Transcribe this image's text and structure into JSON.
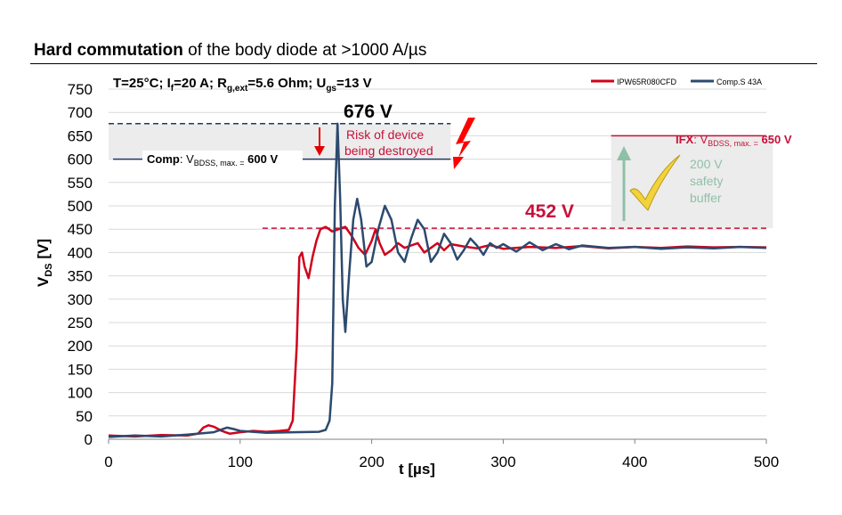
{
  "title": {
    "bold": "Hard commutation",
    "rest": "of the body diode at >1000 A/µs"
  },
  "conditions": {
    "a": "T=25°C; I",
    "a_sub": "f",
    "b": "=20 A; R",
    "b_sub": "g,ext",
    "c": "=5.6 Ohm; U",
    "c_sub": "gs",
    "d": "=13 V"
  },
  "legend": {
    "red": "IPW65R080CFD",
    "blue": "Comp.S 43A"
  },
  "colors": {
    "red": "#d0021b",
    "blue": "#2c4a6e",
    "green": "#8fbfa8",
    "magenta": "#c8103a",
    "pink": "#cc2255",
    "shade": "#ececec"
  },
  "annotations": {
    "peak": "676 V",
    "risk_line1": "Risk of device",
    "risk_line2": "being destroyed",
    "comp_name": "Comp",
    "comp_colon": ": V",
    "comp_sub": "BDSS, max. =",
    "comp_val": " 600 V",
    "ifx_name": "IFX",
    "ifx_colon": ": V",
    "ifx_sub": "BDSS, max. =",
    "ifx_val": " 650 V",
    "steady": "452 V",
    "buffer1": "200 V",
    "buffer2": "safety",
    "buffer3": "buffer"
  },
  "chart_data": {
    "type": "line",
    "xlabel": "t [µs]",
    "ylabel_main": "V",
    "ylabel_sub": "DS",
    "ylabel_unit": " [V]",
    "xlim": [
      0,
      500
    ],
    "ylim": [
      0,
      750
    ],
    "xticks": [
      0,
      100,
      200,
      300,
      400,
      500
    ],
    "yticks": [
      0,
      50,
      100,
      150,
      200,
      250,
      300,
      350,
      400,
      450,
      500,
      550,
      600,
      650,
      700,
      750
    ],
    "grid": true,
    "legend_position": "top-right",
    "reference_lines": [
      {
        "label": "676 V",
        "y": 676,
        "x": [
          0,
          260
        ]
      },
      {
        "label": "Comp: VBDSS, max. = 600 V",
        "y": 600,
        "x": [
          0,
          260
        ]
      },
      {
        "label": "IFX: VBDSS, max. = 650 V",
        "y": 650,
        "x": [
          380,
          500
        ]
      },
      {
        "label": "452 V",
        "y": 452,
        "x": [
          117,
          500
        ]
      }
    ],
    "series": [
      {
        "name": "IPW65R080CFD",
        "x": [
          0,
          20,
          40,
          60,
          68,
          72,
          76,
          80,
          86,
          92,
          100,
          110,
          120,
          130,
          137,
          140,
          143,
          145,
          147,
          149,
          152,
          155,
          158,
          161,
          165,
          170,
          175,
          180,
          185,
          190,
          195,
          200,
          203,
          206,
          210,
          215,
          220,
          225,
          230,
          235,
          240,
          245,
          250,
          255,
          260,
          270,
          280,
          290,
          300,
          320,
          340,
          360,
          380,
          400,
          420,
          440,
          460,
          480,
          500
        ],
        "y": [
          8,
          6,
          9,
          8,
          12,
          25,
          30,
          27,
          18,
          12,
          15,
          18,
          16,
          18,
          20,
          40,
          200,
          390,
          400,
          370,
          345,
          390,
          425,
          450,
          455,
          445,
          450,
          455,
          435,
          410,
          395,
          425,
          450,
          420,
          395,
          405,
          420,
          410,
          415,
          420,
          400,
          410,
          420,
          405,
          418,
          413,
          409,
          416,
          408,
          412,
          410,
          414,
          409,
          412,
          410,
          413,
          411,
          412,
          411
        ]
      },
      {
        "name": "Comp.S 43A",
        "x": [
          0,
          20,
          40,
          60,
          80,
          90,
          95,
          100,
          120,
          140,
          160,
          165,
          168,
          170,
          172,
          174,
          176,
          178,
          180,
          183,
          186,
          189,
          192,
          196,
          200,
          205,
          210,
          215,
          220,
          225,
          230,
          235,
          240,
          245,
          250,
          255,
          260,
          265,
          270,
          275,
          280,
          285,
          290,
          295,
          300,
          310,
          320,
          330,
          340,
          350,
          360,
          380,
          400,
          420,
          440,
          460,
          480,
          500
        ],
        "y": [
          5,
          8,
          6,
          10,
          15,
          25,
          22,
          18,
          14,
          15,
          16,
          20,
          40,
          120,
          500,
          676,
          520,
          300,
          230,
          360,
          470,
          515,
          470,
          370,
          380,
          450,
          500,
          470,
          400,
          380,
          430,
          470,
          450,
          380,
          400,
          440,
          420,
          385,
          405,
          430,
          415,
          395,
          420,
          410,
          418,
          402,
          422,
          405,
          418,
          407,
          415,
          410,
          412,
          408,
          411,
          409,
          412,
          410
        ]
      }
    ]
  }
}
